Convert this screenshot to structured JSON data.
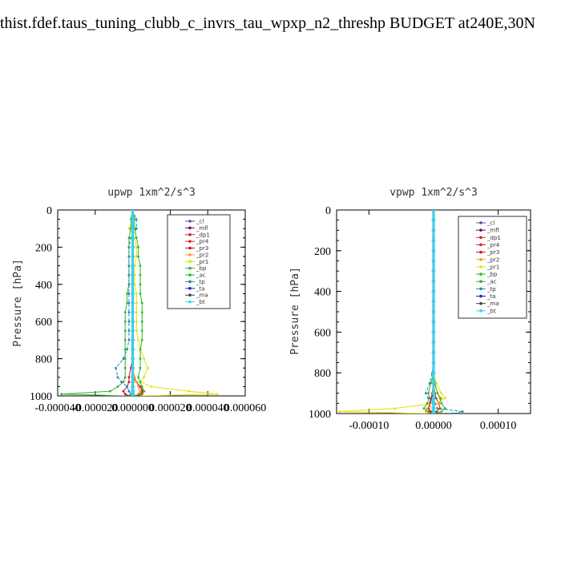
{
  "title": "thist.fdef.taus_tuning_clubb_c_invrs_tau_wpxp_n2_threshp  BUDGET at240E,30N",
  "legend_labels": [
    "_cl",
    "_mfl",
    "_dp1",
    "_pr4",
    "_pr3",
    "_pr2",
    "_pr1",
    "_bp",
    "_ac",
    "_tp",
    "_ta",
    "_ma",
    "_bt"
  ],
  "series_colors": [
    "#7b3fa0",
    "#6a0d5f",
    "#d42020",
    "#e0203a",
    "#c8102e",
    "#f0a020",
    "#e8e000",
    "#32b432",
    "#20c020",
    "#1e8cb4",
    "#2020d0",
    "#404040",
    "#30d8f0"
  ],
  "chart_data": [
    {
      "type": "line",
      "title": "upwp   1xm^2/s^3",
      "ylabel": "Pressure [hPa]",
      "xlabel": "",
      "xlim": [
        -4e-05,
        6e-05
      ],
      "ylim": [
        1000,
        0
      ],
      "x_ticks": [
        "-0.000040",
        "-0.000020",
        "0.000000",
        "0.000020",
        "0.000040",
        "0.000060"
      ],
      "x_tick_values": [
        -4e-05,
        -2e-05,
        0,
        2e-05,
        4e-05,
        6e-05
      ],
      "y_ticks": [
        0,
        200,
        400,
        600,
        800,
        1000
      ],
      "legend": "top-right",
      "y": [
        0,
        50,
        100,
        150,
        200,
        250,
        300,
        350,
        400,
        450,
        500,
        550,
        600,
        650,
        700,
        750,
        800,
        850,
        900,
        925,
        950,
        975,
        990,
        1000
      ],
      "series": [
        {
          "name": "_cl",
          "values": [
            0,
            0,
            0,
            0,
            0,
            0,
            0,
            0,
            0,
            0,
            0,
            0,
            0,
            0,
            0,
            0,
            0,
            0,
            0,
            0,
            0,
            0,
            0,
            0
          ]
        },
        {
          "name": "_mfl",
          "values": [
            0,
            0,
            0,
            0,
            0,
            0,
            0,
            0,
            0,
            0,
            0,
            0,
            0,
            0,
            0,
            0,
            0,
            0,
            0,
            0,
            0,
            0,
            0,
            0
          ]
        },
        {
          "name": "_dp1",
          "values": [
            0,
            0,
            0,
            0,
            0,
            0,
            0,
            0,
            0,
            0,
            0,
            0,
            0,
            0,
            0,
            0,
            0,
            0,
            0,
            2e-06,
            4e-06,
            6e-06,
            5e-06,
            2e-06
          ]
        },
        {
          "name": "_pr4",
          "values": [
            0,
            0,
            0,
            0,
            0,
            0,
            0,
            0,
            0,
            0,
            0,
            0,
            0,
            0,
            0,
            0,
            0,
            0,
            1e-06,
            2e-06,
            4e-06,
            5e-06,
            4e-06,
            1e-06
          ]
        },
        {
          "name": "_pr3",
          "values": [
            0,
            0,
            0,
            0,
            0,
            0,
            0,
            0,
            0,
            0,
            0,
            0,
            0,
            0,
            0,
            0,
            0,
            -1e-06,
            -2e-06,
            -2e-06,
            -3e-06,
            -5e-06,
            -4e-06,
            -2e-06
          ]
        },
        {
          "name": "_pr2",
          "values": [
            0,
            0,
            0,
            0,
            0,
            0,
            0,
            0,
            0,
            0,
            0,
            0,
            0,
            0,
            0,
            0,
            0,
            0,
            1e-06,
            2e-06,
            3e-06,
            4e-06,
            3e-06,
            1e-06
          ]
        },
        {
          "name": "_pr1",
          "values": [
            0,
            1e-06,
            -2e-06,
            1e-06,
            2e-06,
            2e-06,
            1e-06,
            1e-06,
            1e-06,
            2e-06,
            2e-06,
            2e-06,
            2e-06,
            2e-06,
            3e-06,
            4e-06,
            6e-06,
            8e-06,
            6e-06,
            4e-06,
            1e-05,
            3e-05,
            4.5e-05,
            5e-06
          ]
        },
        {
          "name": "_bp",
          "values": [
            0,
            -1e-06,
            -1e-06,
            -2e-06,
            -2e-06,
            -2e-06,
            -2e-06,
            -2e-06,
            -2e-06,
            -3e-06,
            -3e-06,
            -4e-06,
            -4e-06,
            -4e-06,
            -4e-06,
            -4e-06,
            -4e-06,
            -4e-06,
            -4e-06,
            -5e-06,
            -8e-06,
            -1.2e-05,
            -3.8e-05,
            -4e-06
          ]
        },
        {
          "name": "_ac",
          "values": [
            0,
            1e-06,
            1e-06,
            2e-06,
            3e-06,
            3e-06,
            4e-06,
            4e-06,
            4e-06,
            4e-06,
            5e-06,
            5e-06,
            5e-06,
            5e-06,
            5e-06,
            4e-06,
            4e-06,
            4e-06,
            3e-06,
            4e-06,
            5e-06,
            6e-06,
            4e-06,
            1e-06
          ]
        },
        {
          "name": "_tp",
          "values": [
            0,
            2e-06,
            2e-06,
            -1e-06,
            -2e-06,
            -2e-06,
            -2e-06,
            -2e-06,
            -2e-06,
            -2e-06,
            -2e-06,
            -2e-06,
            -2e-06,
            -2e-06,
            -2e-06,
            -3e-06,
            -5e-06,
            -9e-06,
            -8e-06,
            -6e-06,
            -3e-06,
            -2e-06,
            -1e-06,
            0
          ]
        },
        {
          "name": "_ta",
          "values": [
            0,
            0,
            0,
            0,
            0,
            0,
            0,
            0,
            0,
            0,
            0,
            0,
            0,
            0,
            0,
            0,
            0,
            0,
            0,
            0,
            0,
            0,
            0,
            0
          ]
        },
        {
          "name": "_ma",
          "values": [
            0,
            0,
            0,
            0,
            0,
            0,
            0,
            0,
            0,
            0,
            0,
            0,
            0,
            0,
            0,
            0,
            0,
            0,
            0,
            0,
            0,
            0,
            0,
            0
          ]
        },
        {
          "name": "_bt",
          "values": [
            0,
            0,
            0,
            0,
            0,
            0,
            0,
            0,
            0,
            0,
            0,
            0,
            0,
            0,
            0,
            0,
            0,
            0,
            0,
            0,
            0,
            0,
            0,
            0
          ]
        }
      ]
    },
    {
      "type": "line",
      "title": "vpwp   1xm^2/s^3",
      "ylabel": "Pressure [hPa]",
      "xlabel": "",
      "xlim": [
        -0.00015,
        0.00015
      ],
      "ylim": [
        1000,
        0
      ],
      "x_ticks": [
        "-0.00010",
        "0.00000",
        "0.00010"
      ],
      "x_tick_values": [
        -0.0001,
        0,
        0.0001
      ],
      "y_ticks": [
        0,
        200,
        400,
        600,
        800,
        1000
      ],
      "legend": "top-right",
      "y": [
        0,
        50,
        100,
        150,
        200,
        250,
        300,
        350,
        400,
        450,
        500,
        550,
        600,
        650,
        700,
        750,
        800,
        850,
        900,
        925,
        950,
        975,
        990,
        1000
      ],
      "series": [
        {
          "name": "_cl",
          "values": [
            0,
            0,
            0,
            0,
            0,
            0,
            0,
            0,
            0,
            0,
            0,
            0,
            0,
            0,
            0,
            0,
            0,
            0,
            0,
            0,
            0,
            0,
            0,
            0
          ]
        },
        {
          "name": "_mfl",
          "values": [
            0,
            0,
            0,
            0,
            0,
            0,
            0,
            0,
            0,
            0,
            0,
            0,
            0,
            0,
            0,
            0,
            0,
            0,
            0,
            0,
            0,
            0,
            0,
            0
          ]
        },
        {
          "name": "_dp1",
          "values": [
            0,
            0,
            0,
            0,
            0,
            0,
            0,
            0,
            0,
            0,
            0,
            0,
            0,
            0,
            0,
            0,
            0,
            0,
            2e-06,
            4e-06,
            8e-06,
            1e-05,
            5e-06,
            2e-06
          ]
        },
        {
          "name": "_pr4",
          "values": [
            0,
            0,
            0,
            0,
            0,
            0,
            0,
            0,
            0,
            0,
            0,
            0,
            0,
            0,
            0,
            0,
            0,
            0,
            -1e-06,
            -3e-06,
            -5e-06,
            -8e-06,
            -4e-06,
            -2e-06
          ]
        },
        {
          "name": "_pr3",
          "values": [
            0,
            0,
            0,
            0,
            0,
            0,
            0,
            0,
            0,
            0,
            0,
            0,
            0,
            0,
            0,
            0,
            0,
            0,
            -2e-06,
            -4e-06,
            -6e-06,
            -8e-06,
            -6e-06,
            -2e-06
          ]
        },
        {
          "name": "_pr2",
          "values": [
            0,
            0,
            0,
            0,
            0,
            0,
            0,
            0,
            0,
            0,
            0,
            0,
            0,
            0,
            0,
            0,
            0,
            2e-06,
            6e-06,
            1.2e-05,
            8e-06,
            -1e-05,
            -1.2e-05,
            -2e-06
          ]
        },
        {
          "name": "_pr1",
          "values": [
            0,
            0,
            0,
            0,
            0,
            0,
            0,
            0,
            0,
            0,
            0,
            0,
            0,
            0,
            0,
            0,
            0,
            4e-06,
            1.2e-05,
            1.8e-05,
            2e-06,
            -6e-05,
            -0.000145,
            -1e-05
          ]
        },
        {
          "name": "_bp",
          "values": [
            0,
            0,
            0,
            0,
            0,
            0,
            0,
            0,
            0,
            0,
            0,
            0,
            0,
            0,
            0,
            0,
            0,
            -4e-06,
            -8e-06,
            -6e-06,
            -1e-05,
            -1.5e-05,
            -8e-06,
            -2e-06
          ]
        },
        {
          "name": "_ac",
          "values": [
            0,
            0,
            0,
            0,
            0,
            0,
            0,
            0,
            0,
            0,
            0,
            0,
            0,
            0,
            0,
            0,
            0,
            2e-06,
            6e-06,
            1e-05,
            1.2e-05,
            1.8e-05,
            1.2e-05,
            3e-06
          ]
        },
        {
          "name": "_tp",
          "values": [
            0,
            0,
            0,
            0,
            0,
            0,
            0,
            0,
            0,
            0,
            0,
            0,
            0,
            0,
            0,
            0,
            -2e-06,
            -6e-06,
            -1.2e-05,
            -8e-06,
            2e-06,
            6e-06,
            4.5e-05,
            3e-05
          ]
        },
        {
          "name": "_ta",
          "values": [
            0,
            0,
            0,
            0,
            0,
            0,
            0,
            0,
            0,
            0,
            0,
            0,
            0,
            0,
            0,
            0,
            0,
            0,
            0,
            0,
            0,
            0,
            0,
            0
          ]
        },
        {
          "name": "_ma",
          "values": [
            0,
            0,
            0,
            0,
            0,
            0,
            0,
            0,
            0,
            0,
            0,
            0,
            0,
            0,
            0,
            0,
            0,
            0,
            0,
            0,
            0,
            0,
            0,
            0
          ]
        },
        {
          "name": "_bt",
          "values": [
            0,
            0,
            0,
            0,
            0,
            0,
            0,
            0,
            0,
            0,
            0,
            0,
            0,
            0,
            0,
            0,
            0,
            0,
            0,
            0,
            0,
            0,
            0,
            0
          ]
        }
      ]
    }
  ]
}
